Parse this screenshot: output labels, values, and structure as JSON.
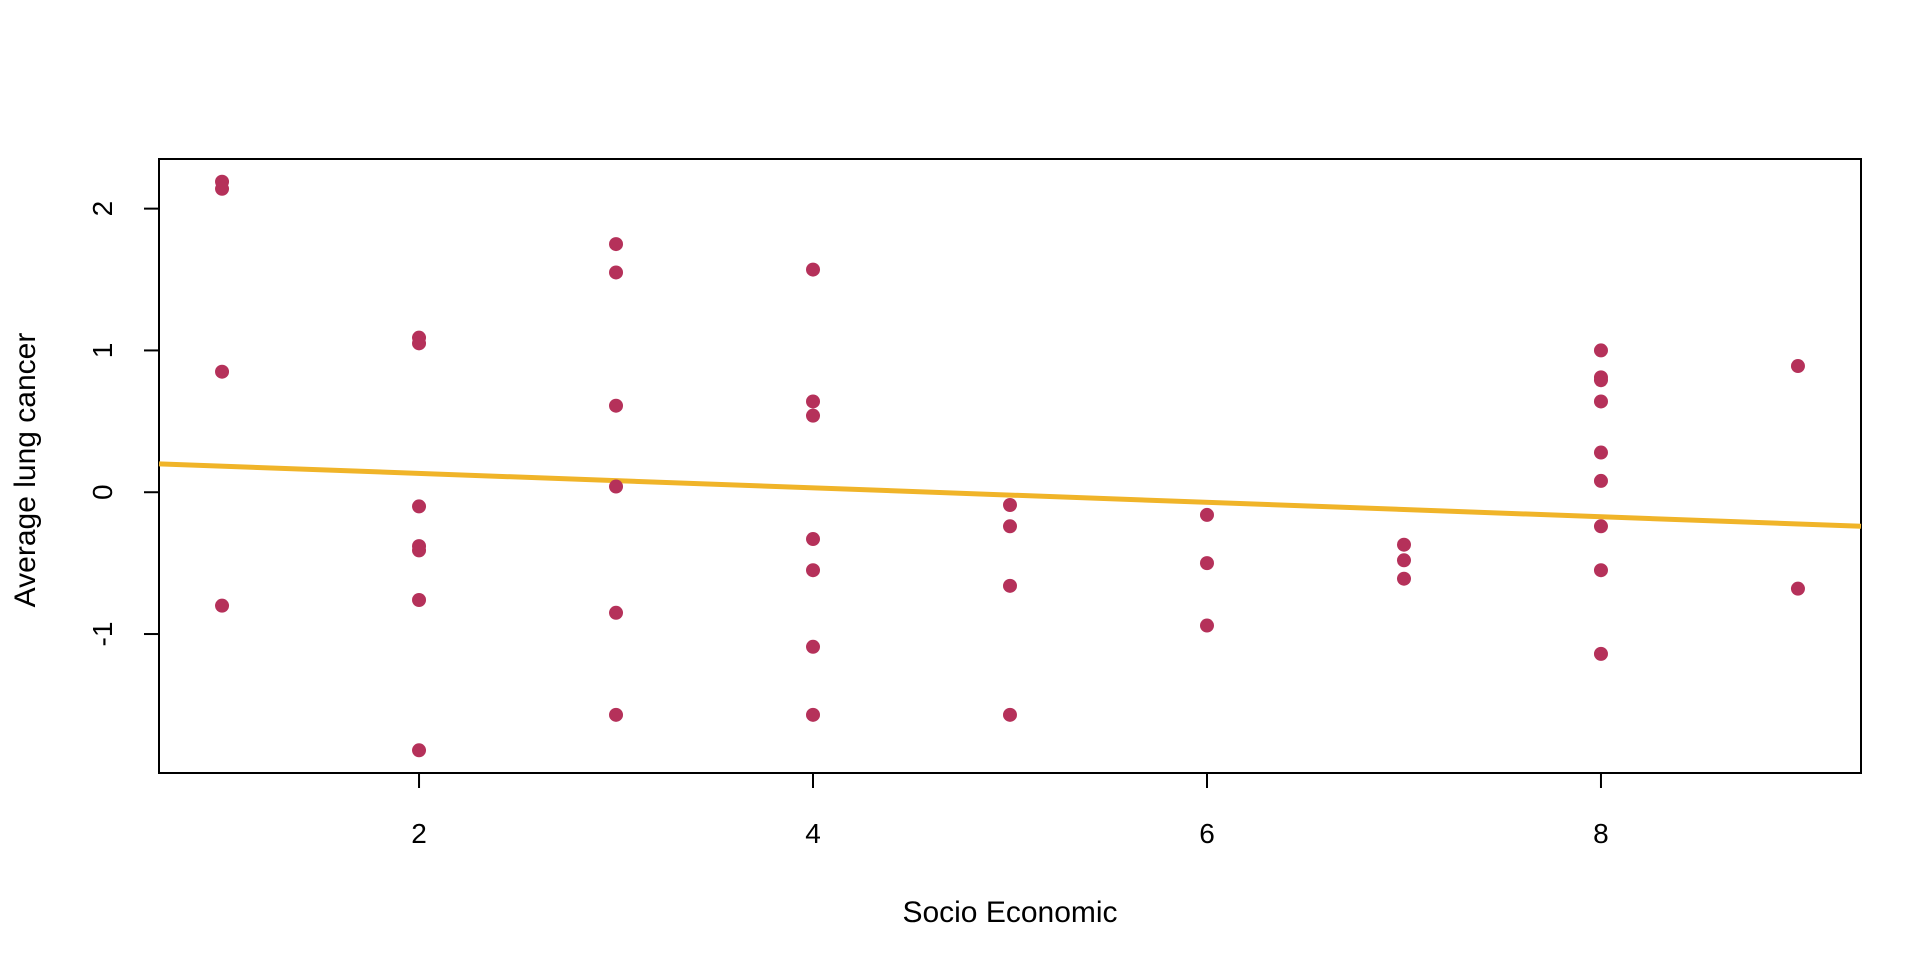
{
  "chart_data": {
    "type": "scatter",
    "title": "",
    "xlabel": "Socio Economic",
    "ylabel": "Average lung cancer",
    "xlim": [
      0.68,
      9.32
    ],
    "ylim": [
      -1.98,
      2.35
    ],
    "x_ticks": [
      2,
      4,
      6,
      8
    ],
    "y_ticks": [
      -1,
      0,
      1,
      2
    ],
    "grid": false,
    "legend": "none",
    "point_color": "#b5315a",
    "line_color": "#f0b429",
    "points": [
      {
        "x": 1,
        "y": 2.19
      },
      {
        "x": 1,
        "y": 2.14
      },
      {
        "x": 1,
        "y": 0.85
      },
      {
        "x": 1,
        "y": -0.8
      },
      {
        "x": 2,
        "y": 1.09
      },
      {
        "x": 2,
        "y": 1.05
      },
      {
        "x": 2,
        "y": -0.1
      },
      {
        "x": 2,
        "y": -0.38
      },
      {
        "x": 2,
        "y": -0.41
      },
      {
        "x": 2,
        "y": -0.76
      },
      {
        "x": 2,
        "y": -1.82
      },
      {
        "x": 3,
        "y": 1.75
      },
      {
        "x": 3,
        "y": 1.55
      },
      {
        "x": 3,
        "y": 0.61
      },
      {
        "x": 3,
        "y": 0.04
      },
      {
        "x": 3,
        "y": -0.85
      },
      {
        "x": 3,
        "y": -1.57
      },
      {
        "x": 4,
        "y": 1.57
      },
      {
        "x": 4,
        "y": 0.64
      },
      {
        "x": 4,
        "y": 0.54
      },
      {
        "x": 4,
        "y": -0.33
      },
      {
        "x": 4,
        "y": -0.55
      },
      {
        "x": 4,
        "y": -1.09
      },
      {
        "x": 4,
        "y": -1.57
      },
      {
        "x": 5,
        "y": -0.09
      },
      {
        "x": 5,
        "y": -0.24
      },
      {
        "x": 5,
        "y": -0.66
      },
      {
        "x": 5,
        "y": -1.57
      },
      {
        "x": 6,
        "y": -0.16
      },
      {
        "x": 6,
        "y": -0.5
      },
      {
        "x": 6,
        "y": -0.94
      },
      {
        "x": 7,
        "y": -0.37
      },
      {
        "x": 7,
        "y": -0.48
      },
      {
        "x": 7,
        "y": -0.61
      },
      {
        "x": 8,
        "y": 1.0
      },
      {
        "x": 8,
        "y": 0.81
      },
      {
        "x": 8,
        "y": 0.79
      },
      {
        "x": 8,
        "y": 0.64
      },
      {
        "x": 8,
        "y": 0.28
      },
      {
        "x": 8,
        "y": 0.08
      },
      {
        "x": 8,
        "y": -0.24
      },
      {
        "x": 8,
        "y": -0.55
      },
      {
        "x": 8,
        "y": -1.14
      },
      {
        "x": 9,
        "y": 0.89
      },
      {
        "x": 9,
        "y": -0.68
      }
    ],
    "fit_line": {
      "x": [
        0.68,
        9.32
      ],
      "y": [
        0.2,
        -0.24
      ]
    }
  }
}
